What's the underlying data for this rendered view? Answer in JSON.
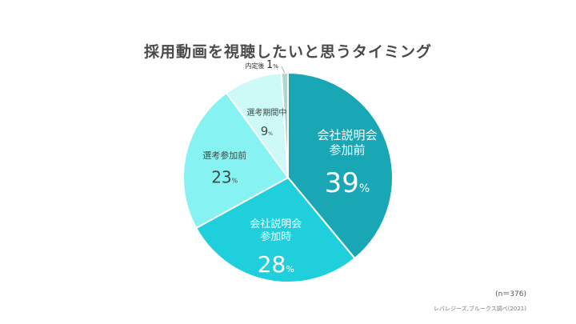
{
  "chart_data": {
    "type": "pie",
    "title": "採用動画を視聴したいと思うタイミング",
    "unit": "%",
    "slices": [
      {
        "label_lines": [
          "会社説明会",
          "参加前"
        ],
        "value": 39,
        "color": "#1aa7b5",
        "text_color": "#ffffff"
      },
      {
        "label_lines": [
          "会社説明会",
          "参加時"
        ],
        "value": 28,
        "color": "#1fd0dc",
        "text_color": "#ffffff"
      },
      {
        "label_lines": [
          "選考参加前"
        ],
        "value": 23,
        "color": "#86f2f2",
        "text_color": "#3d4b4b"
      },
      {
        "label_lines": [
          "選考期間中"
        ],
        "value": 9,
        "color": "#cdf9f6",
        "text_color": "#3d4b4b"
      },
      {
        "label_lines": [
          "内定後"
        ],
        "value": 1,
        "color": "#b0d6d2",
        "text_color": "#3d4b4b"
      }
    ],
    "sample_size": "(n＝376)",
    "source": "レバレジーズ,ブルークス調べ(2021)"
  }
}
